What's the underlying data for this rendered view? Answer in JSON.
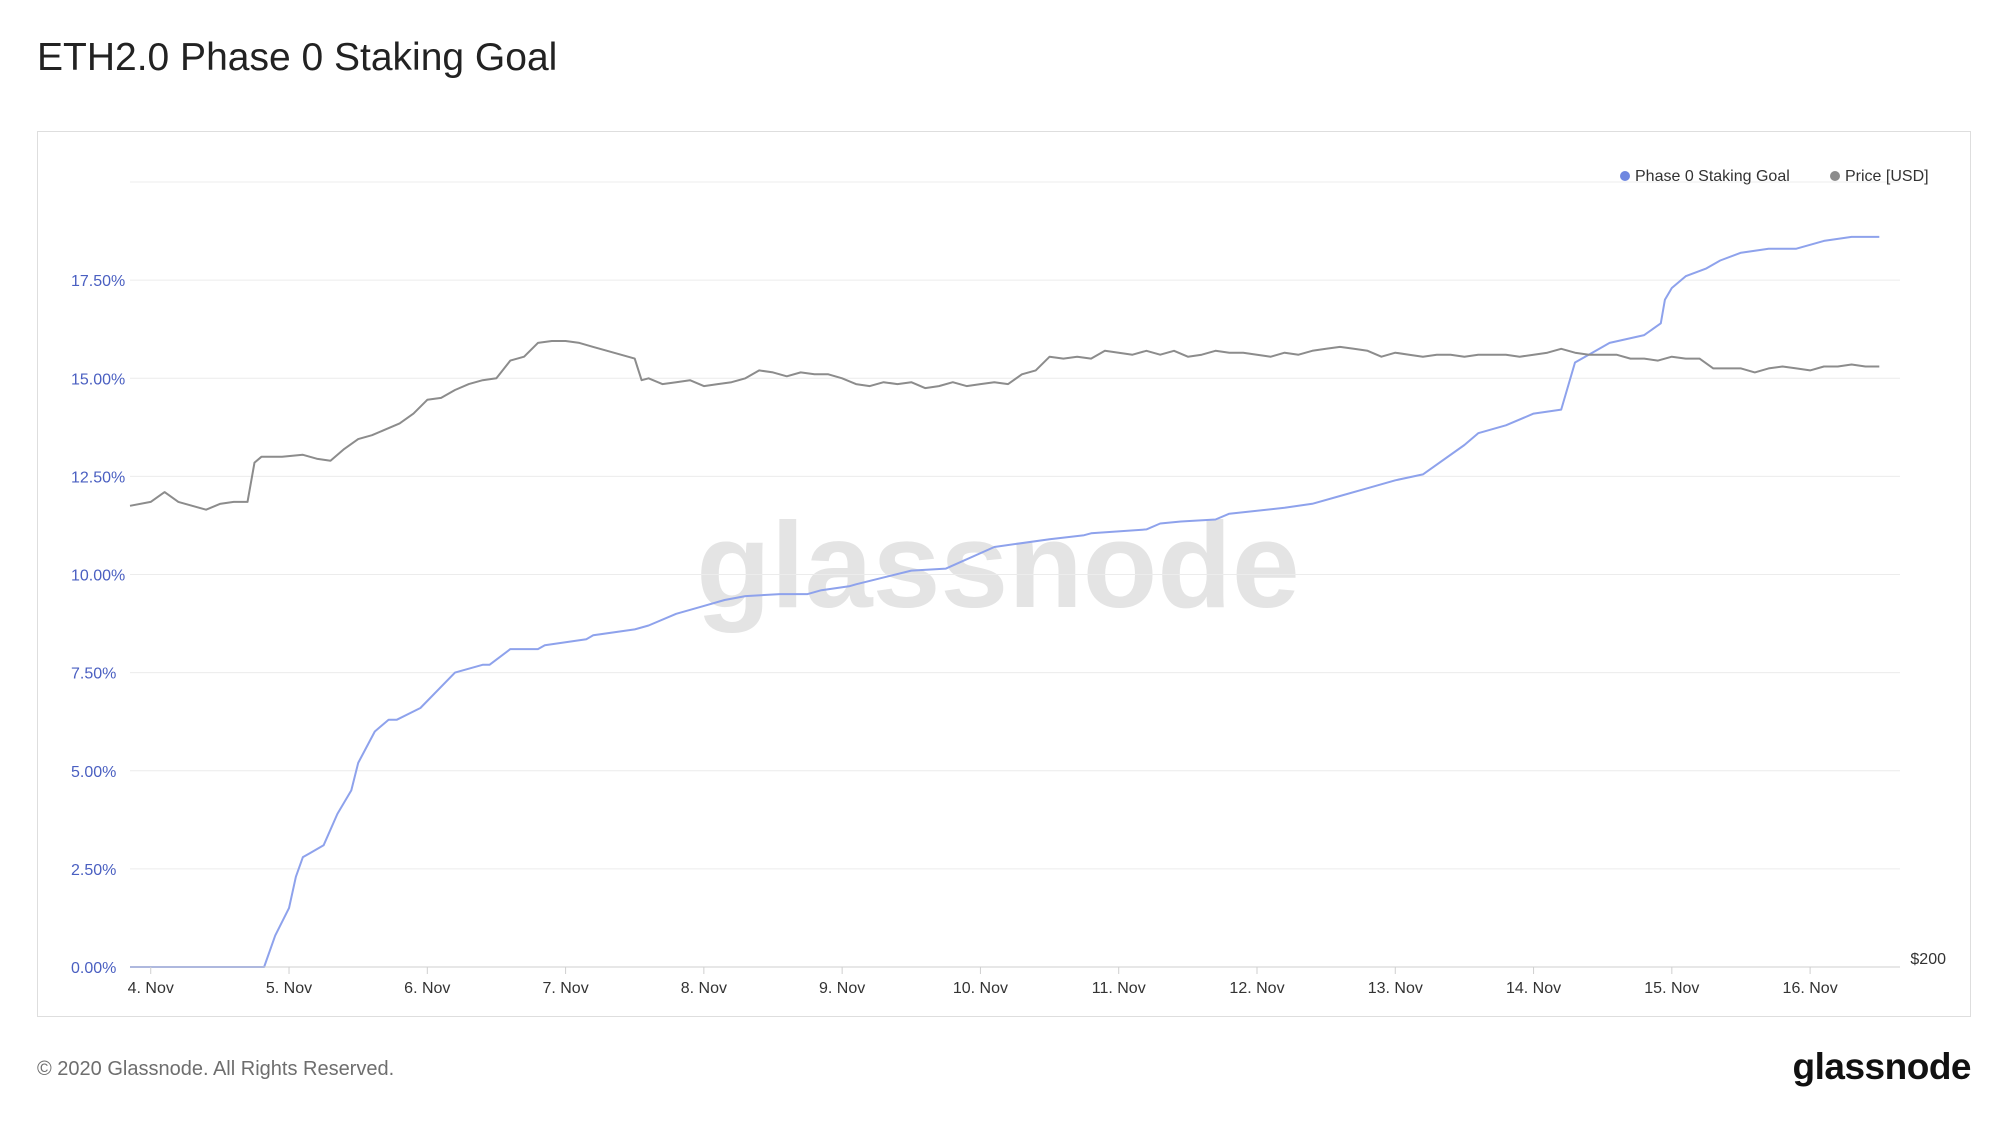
{
  "title": "ETH2.0 Phase 0 Staking Goal",
  "footer": {
    "copyright": "© 2020 Glassnode. All Rights Reserved.",
    "logo": "glassnode"
  },
  "watermark": "glassnode",
  "colors": {
    "staking": "#6f87e0",
    "staking_line": "#8ea2ec",
    "price": "#8c8c8c",
    "axis_text_left": "#4a5fc1",
    "grid": "#ececec"
  },
  "chart_data": {
    "type": "line",
    "title": "ETH2.0 Phase 0 Staking Goal",
    "legend": {
      "placement": "top-right",
      "entries": [
        "Phase 0 Staking Goal",
        "Price [USD]"
      ]
    },
    "grid": true,
    "x_axis": {
      "ticks": [
        "4. Nov",
        "5. Nov",
        "6. Nov",
        "7. Nov",
        "8. Nov",
        "9. Nov",
        "10. Nov",
        "11. Nov",
        "12. Nov",
        "13. Nov",
        "14. Nov",
        "15. Nov",
        "16. Nov"
      ],
      "range_days": [
        3.85,
        16.65
      ]
    },
    "y_axis_left": {
      "ticks": [
        "0.00%",
        "2.50%",
        "5.00%",
        "7.50%",
        "10.00%",
        "12.50%",
        "15.00%",
        "17.50%"
      ],
      "tick_values": [
        0,
        2.5,
        5,
        7.5,
        10,
        12.5,
        15,
        17.5
      ],
      "range": [
        0,
        20
      ]
    },
    "y_axis_right": {
      "ticks": [
        "$200"
      ],
      "tick_values": [
        200
      ],
      "range": [
        200,
        600
      ]
    },
    "series": [
      {
        "name": "Phase 0 Staking Goal",
        "axis": "left",
        "x": [
          3.85,
          4.3,
          4.8,
          4.82,
          4.9,
          5.0,
          5.05,
          5.1,
          5.15,
          5.25,
          5.35,
          5.45,
          5.5,
          5.62,
          5.72,
          5.78,
          5.95,
          6.2,
          6.4,
          6.45,
          6.6,
          6.8,
          6.85,
          7.15,
          7.2,
          7.5,
          7.6,
          7.8,
          8.0,
          8.15,
          8.3,
          8.55,
          8.75,
          8.85,
          9.05,
          9.1,
          9.5,
          9.75,
          10.1,
          10.5,
          10.75,
          10.8,
          11.2,
          11.3,
          11.45,
          11.7,
          11.8,
          12.2,
          12.4,
          12.6,
          12.8,
          13.0,
          13.2,
          13.5,
          13.6,
          13.8,
          14.0,
          14.2,
          14.3,
          14.45,
          14.55,
          14.8,
          14.92,
          14.95,
          15.0,
          15.1,
          15.25,
          15.35,
          15.5,
          15.7,
          15.9,
          16.1,
          16.3,
          16.5
        ],
        "y": [
          0.0,
          0.0,
          0.0,
          0.0,
          0.8,
          1.5,
          2.3,
          2.8,
          2.9,
          3.1,
          3.9,
          4.5,
          5.2,
          6.0,
          6.3,
          6.3,
          6.6,
          7.5,
          7.7,
          7.7,
          8.1,
          8.1,
          8.2,
          8.35,
          8.45,
          8.6,
          8.7,
          9.0,
          9.2,
          9.35,
          9.45,
          9.5,
          9.5,
          9.6,
          9.7,
          9.75,
          10.1,
          10.15,
          10.7,
          10.9,
          11.0,
          11.05,
          11.15,
          11.3,
          11.35,
          11.4,
          11.55,
          11.7,
          11.8,
          12.0,
          12.2,
          12.4,
          12.55,
          13.3,
          13.6,
          13.8,
          14.1,
          14.2,
          15.4,
          15.7,
          15.9,
          16.1,
          16.4,
          17.0,
          17.3,
          17.6,
          17.8,
          18.0,
          18.2,
          18.3,
          18.3,
          18.5,
          18.6,
          18.6
        ],
        "color": "#8ea2ec"
      },
      {
        "name": "Price [USD]",
        "axis": "right",
        "x": [
          3.85,
          4.0,
          4.1,
          4.2,
          4.3,
          4.4,
          4.5,
          4.6,
          4.7,
          4.75,
          4.8,
          4.95,
          5.1,
          5.2,
          5.3,
          5.4,
          5.5,
          5.6,
          5.7,
          5.8,
          5.9,
          6.0,
          6.1,
          6.2,
          6.3,
          6.4,
          6.5,
          6.6,
          6.7,
          6.8,
          6.9,
          7.0,
          7.1,
          7.2,
          7.3,
          7.4,
          7.5,
          7.55,
          7.6,
          7.7,
          7.8,
          7.9,
          8.0,
          8.1,
          8.2,
          8.3,
          8.4,
          8.5,
          8.6,
          8.7,
          8.8,
          8.9,
          9.0,
          9.1,
          9.2,
          9.3,
          9.4,
          9.5,
          9.6,
          9.7,
          9.8,
          9.9,
          10.0,
          10.1,
          10.2,
          10.3,
          10.4,
          10.5,
          10.6,
          10.7,
          10.8,
          10.9,
          11.0,
          11.1,
          11.2,
          11.3,
          11.4,
          11.5,
          11.6,
          11.7,
          11.8,
          11.9,
          12.0,
          12.1,
          12.2,
          12.3,
          12.4,
          12.5,
          12.6,
          12.7,
          12.8,
          12.9,
          13.0,
          13.1,
          13.2,
          13.3,
          13.4,
          13.5,
          13.6,
          13.7,
          13.8,
          13.9,
          14.0,
          14.1,
          14.2,
          14.3,
          14.4,
          14.5,
          14.6,
          14.7,
          14.8,
          14.9,
          15.0,
          15.1,
          15.2,
          15.3,
          15.4,
          15.5,
          15.6,
          15.7,
          15.8,
          15.9,
          16.0,
          16.1,
          16.2,
          16.3,
          16.4,
          16.5
        ],
        "y": [
          435,
          437,
          442,
          437,
          435,
          433,
          436,
          437,
          437,
          457,
          460,
          460,
          461,
          459,
          458,
          464,
          469,
          471,
          474,
          477,
          482,
          489,
          490,
          494,
          497,
          499,
          500,
          509,
          511,
          518,
          519,
          519,
          518,
          516,
          514,
          512,
          510,
          499,
          500,
          497,
          498,
          499,
          496,
          497,
          498,
          500,
          504,
          503,
          501,
          503,
          502,
          502,
          500,
          497,
          496,
          498,
          497,
          498,
          495,
          496,
          498,
          496,
          497,
          498,
          497,
          502,
          504,
          511,
          510,
          511,
          510,
          514,
          513,
          512,
          514,
          512,
          514,
          511,
          512,
          514,
          513,
          513,
          512,
          511,
          513,
          512,
          514,
          515,
          516,
          515,
          514,
          511,
          513,
          512,
          511,
          512,
          512,
          511,
          512,
          512,
          512,
          511,
          512,
          513,
          515,
          513,
          512,
          512,
          512,
          510,
          510,
          509,
          511,
          510,
          510,
          505,
          505,
          505,
          503,
          505,
          506,
          505,
          504,
          506,
          506,
          507,
          506,
          506
        ],
        "color": "#8c8c8c"
      }
    ]
  }
}
